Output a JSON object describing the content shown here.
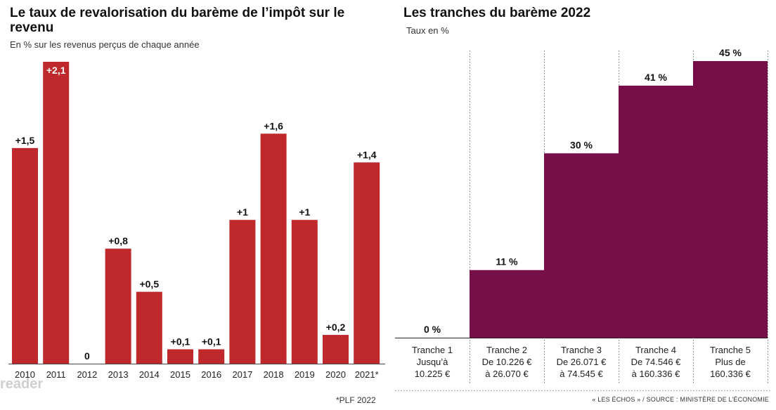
{
  "chart_data": [
    {
      "type": "bar",
      "title": "Le taux de revalorisation du barème de l’impôt sur le revenu",
      "subtitle": "En % sur les revenus perçus de chaque année",
      "categories": [
        "2010",
        "2011",
        "2012",
        "2013",
        "2014",
        "2015",
        "2016",
        "2017",
        "2018",
        "2019",
        "2020",
        "2021*"
      ],
      "values": [
        1.5,
        2.1,
        0,
        0.8,
        0.5,
        0.1,
        0.1,
        1,
        1.6,
        1,
        0.2,
        1.4
      ],
      "data_labels": [
        "+1,5",
        "+2,1",
        "0",
        "+0,8",
        "+0,5",
        "+0,1",
        "+0,1",
        "+1",
        "+1,6",
        "+1",
        "+0,2",
        "+1,4"
      ],
      "ylim": [
        0,
        2.1
      ],
      "color": "#c0292b",
      "grid": false,
      "footnote": "*PLF 2022"
    },
    {
      "type": "bar",
      "title": "Les tranches du barème 2022",
      "subtitle": "Taux en %",
      "categories": [
        [
          "Tranche 1",
          "Jusqu’à",
          "10.225 €"
        ],
        [
          "Tranche 2",
          "De 10.226 €",
          "à 26.070 €"
        ],
        [
          "Tranche 3",
          "De 26.071 €",
          "à 74.545 €"
        ],
        [
          "Tranche 4",
          "De 74.546 €",
          "à 160.336 €"
        ],
        [
          "Tranche 5",
          "Plus de",
          "160.336 €"
        ]
      ],
      "values": [
        0,
        11,
        30,
        41,
        45
      ],
      "data_labels": [
        "0 %",
        "11 %",
        "30 %",
        "41 %",
        "45 %"
      ],
      "ylim": [
        0,
        45
      ],
      "color": "#760f47",
      "grid": false,
      "source": "« LES ÉCHOS » / SOURCE : MINISTÈRE DE L’ÉCONOMIE"
    }
  ],
  "watermark": "reader"
}
